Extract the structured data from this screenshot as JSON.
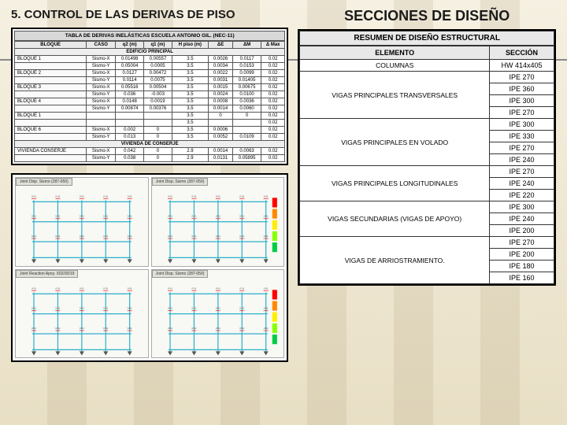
{
  "left": {
    "heading": "5. CONTROL DE LAS DERIVAS DE PISO",
    "table_title": "TABLA DE DERIVAS INELÁSTICAS ESCUELA ANTONIO GIL. (NEC-11)",
    "columns": [
      "BLOQUE",
      "CASO",
      "q2 (m)",
      "q1 (m)",
      "H piso (m)",
      "ΔE",
      "ΔM",
      "Δ Max"
    ],
    "section1": "EDIFICIO PRINCIPAL",
    "rows1": [
      {
        "b": "BLOQUE 1",
        "c": "Sismo-X",
        "v": [
          "0.01498",
          "0.00557",
          "3.5",
          "0.0026",
          "0.0117",
          "0.02"
        ]
      },
      {
        "b": "",
        "c": "Sismo-Y",
        "v": [
          "0.05004",
          "0.0005",
          "3.5",
          "0.0034",
          "0.0153",
          "0.02"
        ]
      },
      {
        "b": "BLOQUE 2",
        "c": "Sismo-X",
        "v": [
          "0.0127",
          "0.00472",
          "3.5",
          "0.0022",
          "0.0099",
          "0.02"
        ]
      },
      {
        "b": "",
        "c": "Sismo-Y",
        "v": [
          "0.0114",
          "0.0075",
          "3.5",
          "0.0031",
          "0.01405",
          "0.02"
        ]
      },
      {
        "b": "BLOQUE 3",
        "c": "Sismo-X",
        "v": [
          "0.05516",
          "0.00504",
          "3.5",
          "0.0015",
          "0.00675",
          "0.02"
        ]
      },
      {
        "b": "",
        "c": "Sismo-Y",
        "v": [
          "0.036",
          "-0.003",
          "3.5",
          "0.0024",
          "0.0100",
          "0.02"
        ]
      },
      {
        "b": "BLOQUE 4",
        "c": "Sismo-X",
        "v": [
          "0.0148",
          "0.0019",
          "3.5",
          "0.0008",
          "0.0036",
          "0.02"
        ]
      },
      {
        "b": "",
        "c": "Sismo-Y",
        "v": [
          "0.00874",
          "0.00376",
          "3.5",
          "0.0014",
          "0.0060",
          "0.02"
        ]
      },
      {
        "b": "BLOQUE 1",
        "c": "",
        "v": [
          "",
          "",
          "3.5",
          "0",
          "0",
          "0.02"
        ]
      },
      {
        "b": "",
        "c": "",
        "v": [
          "",
          "",
          "3.5",
          "",
          "",
          "0.02"
        ]
      },
      {
        "b": "BLOQUE 6",
        "c": "Sismo-X",
        "v": [
          "0.002",
          "0",
          "3.5",
          "0.0006",
          "",
          "0.02"
        ]
      },
      {
        "b": "",
        "c": "Sismo-Y",
        "v": [
          "0.013",
          "0",
          "3.5",
          "0.0052",
          "0.0109",
          "0.02"
        ]
      }
    ],
    "section2": "VIVIENDA DE CONSERJE",
    "rows2": [
      {
        "b": "VIVIENDA CONSERJE",
        "c": "Sismo-X",
        "v": [
          "0.042",
          "0",
          "2.9",
          "0.0014",
          "0.0063",
          "0.02"
        ]
      },
      {
        "b": "",
        "c": "Sismo-Y",
        "v": [
          "0.038",
          "0",
          "2.9",
          "0.0131",
          "0.05895",
          "0.02"
        ]
      }
    ],
    "diagrams": {
      "tab1": "Joint Disp. Sismo (287-050)",
      "tab2": "Joint Disp. Sismo (287-050)",
      "tab3": "Joint Reaction Apoy. X02/30/19",
      "tab4": "Joint Disp. Sismo (287-050)",
      "frame_color": "#2ab0c9",
      "load_color": "#ff3030",
      "spectrum_colors": [
        "#ff0000",
        "#ff8800",
        "#ffee00",
        "#88ff00",
        "#00cc44"
      ]
    }
  },
  "right": {
    "heading": "SECCIONES DE DISEÑO",
    "table_title": "RESUMEN DE DISEÑO ESTRUCTURAL",
    "col_elem": "ELEMENTO",
    "col_sec": "SECCIÓN",
    "rows": [
      {
        "elem": "COLUMNAS",
        "sec": "HW 414x405",
        "thick": true
      },
      {
        "elem": "VIGAS PRINCIPALES TRANSVERSALES",
        "sec": "IPE 270",
        "thick": true
      },
      {
        "elem": "",
        "sec": "IPE 360"
      },
      {
        "elem": "",
        "sec": "IPE 300"
      },
      {
        "elem": "",
        "sec": "IPE 270"
      },
      {
        "elem": "VIGAS PRINCIPALES EN VOLADO",
        "sec": "IPE 300",
        "thick": true
      },
      {
        "elem": "",
        "sec": "IPE 330"
      },
      {
        "elem": "",
        "sec": "IPE 270"
      },
      {
        "elem": "",
        "sec": "IPE 240"
      },
      {
        "elem": "VIGAS PRINCIPALES LONGITUDINALES",
        "sec": "IPE 270",
        "thick": true
      },
      {
        "elem": "",
        "sec": "IPE 240"
      },
      {
        "elem": "",
        "sec": "IPE 220"
      },
      {
        "elem": "VIGAS SECUNDARIAS (VIGAS DE APOYO)",
        "sec": "IPE 300",
        "thick": true
      },
      {
        "elem": "",
        "sec": "IPE 240"
      },
      {
        "elem": "",
        "sec": "IPE 200"
      },
      {
        "elem": "VIGAS DE ARRIOSTRAMIENTO.",
        "sec": "IPE 270",
        "thick": true
      },
      {
        "elem": "",
        "sec": "IPE 200"
      },
      {
        "elem": "",
        "sec": "IPE 180"
      },
      {
        "elem": "",
        "sec": "IPE 160"
      }
    ]
  }
}
